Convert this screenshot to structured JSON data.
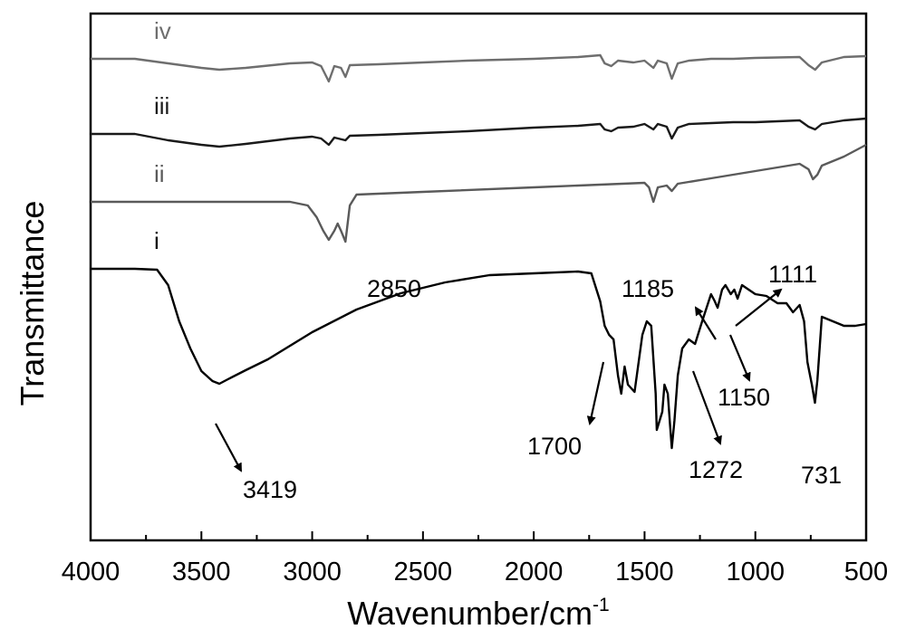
{
  "chart_data": {
    "type": "line",
    "title": "",
    "xlabel": "Wavenumber/cm",
    "xlabel_sup": "-1",
    "ylabel": "Transmittance",
    "xlim": [
      4000,
      500
    ],
    "x_reversed": true,
    "y_ticks_shown": false,
    "grid": false,
    "x_ticks": [
      4000,
      3500,
      3000,
      2500,
      2000,
      1500,
      1000,
      500
    ],
    "series": [
      {
        "name": "iv",
        "color": "#6e6e6e",
        "points": [
          [
            4000,
            50
          ],
          [
            3800,
            50
          ],
          [
            3650,
            55
          ],
          [
            3500,
            60
          ],
          [
            3419,
            62
          ],
          [
            3300,
            60
          ],
          [
            3100,
            55
          ],
          [
            3000,
            54
          ],
          [
            2960,
            58
          ],
          [
            2925,
            75
          ],
          [
            2900,
            58
          ],
          [
            2870,
            60
          ],
          [
            2850,
            70
          ],
          [
            2830,
            57
          ],
          [
            2700,
            56
          ],
          [
            2500,
            54
          ],
          [
            2300,
            52
          ],
          [
            2000,
            50
          ],
          [
            1800,
            48
          ],
          [
            1700,
            46
          ],
          [
            1680,
            55
          ],
          [
            1650,
            58
          ],
          [
            1620,
            52
          ],
          [
            1550,
            54
          ],
          [
            1500,
            52
          ],
          [
            1460,
            60
          ],
          [
            1440,
            52
          ],
          [
            1400,
            55
          ],
          [
            1377,
            72
          ],
          [
            1350,
            55
          ],
          [
            1300,
            52
          ],
          [
            1200,
            50
          ],
          [
            1100,
            50
          ],
          [
            1000,
            49
          ],
          [
            800,
            48
          ],
          [
            760,
            57
          ],
          [
            730,
            62
          ],
          [
            700,
            54
          ],
          [
            600,
            48
          ],
          [
            500,
            47
          ]
        ]
      },
      {
        "name": "iii",
        "color": "#1a1a1a",
        "points": [
          [
            4000,
            133
          ],
          [
            3800,
            133
          ],
          [
            3650,
            140
          ],
          [
            3500,
            145
          ],
          [
            3419,
            147
          ],
          [
            3300,
            144
          ],
          [
            3100,
            138
          ],
          [
            3000,
            136
          ],
          [
            2960,
            138
          ],
          [
            2925,
            145
          ],
          [
            2900,
            137
          ],
          [
            2850,
            140
          ],
          [
            2830,
            135
          ],
          [
            2700,
            134
          ],
          [
            2500,
            132
          ],
          [
            2300,
            130
          ],
          [
            2000,
            126
          ],
          [
            1800,
            124
          ],
          [
            1700,
            122
          ],
          [
            1680,
            128
          ],
          [
            1650,
            130
          ],
          [
            1620,
            126
          ],
          [
            1550,
            125
          ],
          [
            1500,
            122
          ],
          [
            1460,
            128
          ],
          [
            1440,
            122
          ],
          [
            1400,
            125
          ],
          [
            1377,
            138
          ],
          [
            1350,
            126
          ],
          [
            1300,
            122
          ],
          [
            1200,
            121
          ],
          [
            1100,
            120
          ],
          [
            1000,
            120
          ],
          [
            800,
            118
          ],
          [
            760,
            125
          ],
          [
            730,
            128
          ],
          [
            700,
            122
          ],
          [
            600,
            118
          ],
          [
            500,
            116
          ]
        ]
      },
      {
        "name": "ii",
        "color": "#5a5a5a",
        "points": [
          [
            4000,
            208
          ],
          [
            3700,
            208
          ],
          [
            3500,
            208
          ],
          [
            3300,
            208
          ],
          [
            3100,
            208
          ],
          [
            3020,
            212
          ],
          [
            2980,
            225
          ],
          [
            2950,
            240
          ],
          [
            2925,
            250
          ],
          [
            2900,
            240
          ],
          [
            2885,
            232
          ],
          [
            2870,
            240
          ],
          [
            2850,
            252
          ],
          [
            2830,
            212
          ],
          [
            2800,
            200
          ],
          [
            2500,
            197
          ],
          [
            2000,
            192
          ],
          [
            1800,
            190
          ],
          [
            1600,
            188
          ],
          [
            1500,
            187
          ],
          [
            1480,
            192
          ],
          [
            1460,
            208
          ],
          [
            1440,
            192
          ],
          [
            1400,
            190
          ],
          [
            1377,
            196
          ],
          [
            1350,
            188
          ],
          [
            1300,
            186
          ],
          [
            1200,
            182
          ],
          [
            1100,
            178
          ],
          [
            1000,
            174
          ],
          [
            800,
            166
          ],
          [
            760,
            172
          ],
          [
            740,
            183
          ],
          [
            720,
            178
          ],
          [
            700,
            168
          ],
          [
            600,
            158
          ],
          [
            500,
            145
          ]
        ]
      },
      {
        "name": "i",
        "color": "#000000",
        "points": [
          [
            4000,
            282
          ],
          [
            3800,
            282
          ],
          [
            3700,
            283
          ],
          [
            3650,
            300
          ],
          [
            3600,
            340
          ],
          [
            3550,
            370
          ],
          [
            3500,
            395
          ],
          [
            3450,
            406
          ],
          [
            3419,
            409
          ],
          [
            3380,
            404
          ],
          [
            3300,
            394
          ],
          [
            3200,
            382
          ],
          [
            3000,
            352
          ],
          [
            2800,
            327
          ],
          [
            2600,
            309
          ],
          [
            2400,
            297
          ],
          [
            2200,
            289
          ],
          [
            2000,
            287
          ],
          [
            1800,
            285
          ],
          [
            1740,
            287
          ],
          [
            1700,
            318
          ],
          [
            1680,
            345
          ],
          [
            1660,
            355
          ],
          [
            1640,
            360
          ],
          [
            1620,
            400
          ],
          [
            1605,
            420
          ],
          [
            1590,
            390
          ],
          [
            1575,
            410
          ],
          [
            1545,
            418
          ],
          [
            1510,
            355
          ],
          [
            1490,
            340
          ],
          [
            1470,
            345
          ],
          [
            1450,
            420
          ],
          [
            1445,
            460
          ],
          [
            1420,
            440
          ],
          [
            1410,
            410
          ],
          [
            1395,
            420
          ],
          [
            1385,
            455
          ],
          [
            1377,
            480
          ],
          [
            1365,
            450
          ],
          [
            1350,
            400
          ],
          [
            1330,
            370
          ],
          [
            1300,
            360
          ],
          [
            1272,
            365
          ],
          [
            1240,
            340
          ],
          [
            1200,
            310
          ],
          [
            1185,
            317
          ],
          [
            1170,
            325
          ],
          [
            1150,
            305
          ],
          [
            1135,
            300
          ],
          [
            1111,
            310
          ],
          [
            1095,
            305
          ],
          [
            1080,
            315
          ],
          [
            1060,
            300
          ],
          [
            1000,
            310
          ],
          [
            950,
            312
          ],
          [
            900,
            320
          ],
          [
            860,
            320
          ],
          [
            830,
            330
          ],
          [
            800,
            322
          ],
          [
            780,
            340
          ],
          [
            765,
            385
          ],
          [
            745,
            410
          ],
          [
            731,
            430
          ],
          [
            720,
            405
          ],
          [
            700,
            335
          ],
          [
            650,
            340
          ],
          [
            600,
            345
          ],
          [
            550,
            345
          ],
          [
            500,
            343
          ]
        ]
      }
    ],
    "annotations": [
      {
        "text": "3419",
        "x": 3419
      },
      {
        "text": "2850",
        "x": 2850
      },
      {
        "text": "1700",
        "x": 1700
      },
      {
        "text": "1185",
        "x": 1185
      },
      {
        "text": "1111",
        "x": 1111
      },
      {
        "text": "1150",
        "x": 1150
      },
      {
        "text": "1272",
        "x": 1272
      },
      {
        "text": "731",
        "x": 731
      }
    ]
  }
}
